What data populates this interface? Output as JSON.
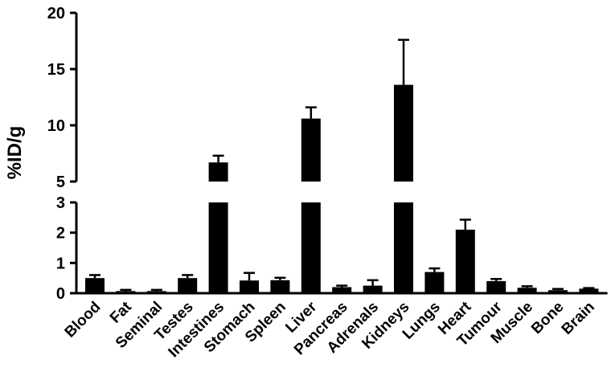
{
  "chart_data": {
    "type": "bar",
    "ylabel": "%ID/g",
    "axis_break": {
      "lower_range": [
        0,
        3
      ],
      "upper_range": [
        5,
        20
      ]
    },
    "yticks_lower": [
      0,
      1,
      2,
      3
    ],
    "yticks_upper": [
      5,
      10,
      15,
      20
    ],
    "categories": [
      "Blood",
      "Fat",
      "Seminal",
      "Testes",
      "Intestines",
      "Stomach",
      "Spleen",
      "Liver",
      "Pancreas",
      "Adrenals",
      "Kidneys",
      "Lungs",
      "Heart",
      "Tumour",
      "Muscle",
      "Bone",
      "Brain"
    ],
    "values": [
      0.5,
      0.07,
      0.07,
      0.5,
      6.7,
      0.42,
      0.43,
      10.6,
      0.2,
      0.25,
      13.6,
      0.7,
      2.1,
      0.4,
      0.18,
      0.1,
      0.15
    ],
    "errors": [
      0.1,
      0.04,
      0.04,
      0.1,
      0.6,
      0.25,
      0.08,
      1.0,
      0.05,
      0.18,
      4.0,
      0.12,
      0.33,
      0.07,
      0.05,
      0.04,
      0.02
    ],
    "bar_color": "#000000",
    "grid": false,
    "legend": "none"
  }
}
